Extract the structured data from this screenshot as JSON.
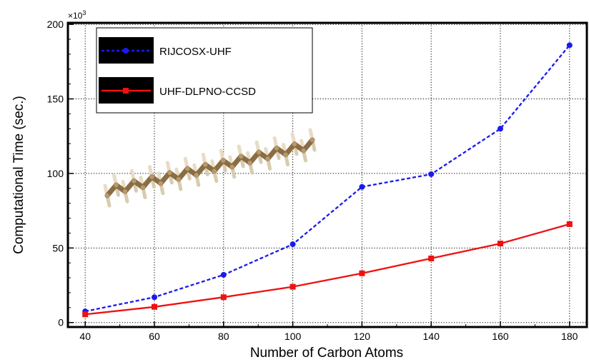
{
  "chart_data": {
    "type": "line",
    "title": "",
    "xlabel": "Number of Carbon Atoms",
    "ylabel": "Computational Time (sec.)",
    "y_multiplier_label": "×10",
    "y_multiplier_exponent": "3",
    "xlim": [
      35,
      185
    ],
    "ylim": [
      -3,
      201
    ],
    "xticks": [
      40,
      60,
      80,
      100,
      120,
      140,
      160,
      180
    ],
    "yticks": [
      0,
      50,
      100,
      150,
      200
    ],
    "grid": true,
    "legend_position": "top-left",
    "x": [
      40,
      60,
      80,
      100,
      120,
      140,
      160,
      180
    ],
    "series": [
      {
        "name": "RIJCOSX-UHF",
        "values": [
          7.5,
          17,
          32,
          52.5,
          91,
          99.5,
          130,
          186
        ],
        "color": "#1a1aee",
        "line_style": "dashed",
        "marker": "circle"
      },
      {
        "name": "UHF-DLPNO-CCSD",
        "values": [
          5.5,
          10.5,
          17,
          24,
          33,
          43,
          53,
          66
        ],
        "color": "#ee1111",
        "line_style": "solid",
        "marker": "square"
      }
    ],
    "inset_image": "alkane-chain-molecule"
  }
}
